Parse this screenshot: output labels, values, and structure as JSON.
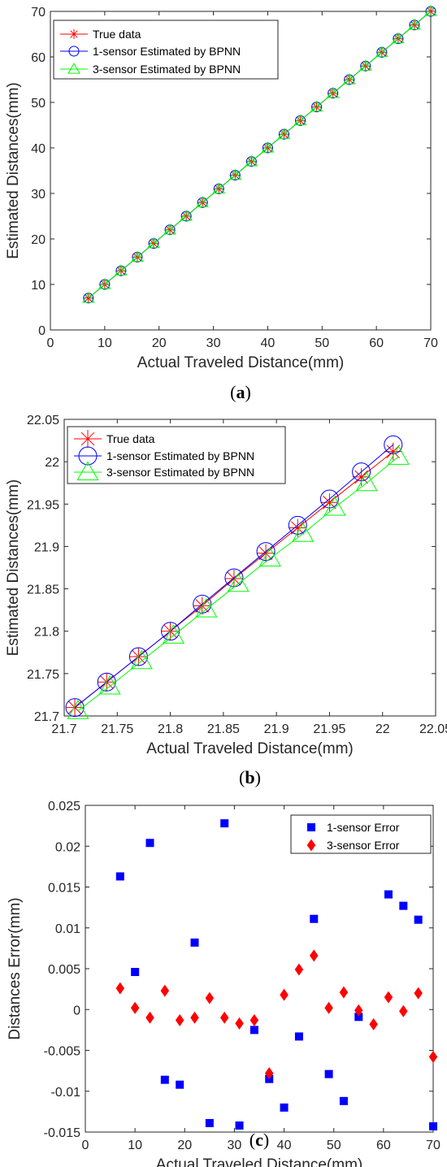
{
  "chart_data": [
    {
      "id": "a",
      "type": "line",
      "caption_letter": "a",
      "xlabel": "Actual Traveled Distance(mm)",
      "ylabel": "Estimated Distances(mm)",
      "xlim": [
        0,
        70
      ],
      "ylim": [
        0,
        70
      ],
      "xticks": [
        "0",
        "10",
        "20",
        "30",
        "40",
        "50",
        "60",
        "70"
      ],
      "yticks": [
        "0",
        "10",
        "20",
        "30",
        "40",
        "50",
        "60",
        "70"
      ],
      "grid": false,
      "legend": "top-left",
      "x": [
        7,
        10,
        13,
        16,
        19,
        22,
        25,
        28,
        31,
        34,
        37,
        40,
        43,
        46,
        49,
        52,
        55,
        58,
        61,
        64,
        67,
        70
      ],
      "series": [
        {
          "name": "True data",
          "color": "#ff0000",
          "marker": "asterisk",
          "y": [
            7,
            10,
            13,
            16,
            19,
            22,
            25,
            28,
            31,
            34,
            37,
            40,
            43,
            46,
            49,
            52,
            55,
            58,
            61,
            64,
            67,
            70
          ]
        },
        {
          "name": "1-sensor Estimated by BPNN",
          "color": "#0000ff",
          "marker": "circle",
          "y": [
            7,
            10,
            13,
            16,
            19,
            22,
            25,
            28,
            31,
            34,
            37,
            40,
            43,
            46,
            49,
            52,
            55,
            58,
            61,
            64,
            67,
            70
          ]
        },
        {
          "name": "3-sensor Estimated by BPNN",
          "color": "#00ff00",
          "marker": "triangle",
          "y": [
            7,
            10,
            13,
            16,
            19,
            22,
            25,
            28,
            31,
            34,
            37,
            40,
            43,
            46,
            49,
            52,
            55,
            58,
            61,
            64,
            67,
            70
          ]
        }
      ]
    },
    {
      "id": "b",
      "type": "line",
      "caption_letter": "b",
      "xlabel": "Actual Traveled Distance(mm)",
      "ylabel": "Estimated Distances(mm)",
      "xlim": [
        21.7,
        22.05
      ],
      "ylim": [
        21.7,
        22.05
      ],
      "xticks": [
        "21.7",
        "21.75",
        "21.8",
        "21.85",
        "21.9",
        "21.95",
        "22",
        "22.05"
      ],
      "yticks": [
        "21.7",
        "21.75",
        "21.8",
        "21.85",
        "21.9",
        "21.95",
        "22",
        "22.05"
      ],
      "grid": false,
      "legend": "top-left",
      "x": [
        21.71,
        21.74,
        21.77,
        21.8,
        21.83,
        21.86,
        21.89,
        21.92,
        21.95,
        21.98,
        22.01
      ],
      "series": [
        {
          "name": "True data",
          "color": "#ff0000",
          "marker": "asterisk",
          "x": [
            21.71,
            21.74,
            21.77,
            21.8,
            21.83,
            21.86,
            21.89,
            21.92,
            21.95,
            21.98,
            22.01
          ],
          "y": [
            21.71,
            21.74,
            21.77,
            21.8,
            21.83,
            21.862,
            21.892,
            21.922,
            21.952,
            21.982,
            22.012
          ]
        },
        {
          "name": "1-sensor Estimated by BPNN",
          "color": "#0000ff",
          "marker": "circle",
          "x": [
            21.71,
            21.74,
            21.77,
            21.8,
            21.83,
            21.86,
            21.89,
            21.92,
            21.95,
            21.98,
            22.01
          ],
          "y": [
            21.71,
            21.74,
            21.77,
            21.8,
            21.832,
            21.863,
            21.894,
            21.925,
            21.956,
            21.988,
            22.02
          ]
        },
        {
          "name": "3-sensor Estimated by BPNN",
          "color": "#00ff00",
          "marker": "triangle",
          "x": [
            21.713,
            21.743,
            21.773,
            21.803,
            21.834,
            21.864,
            21.894,
            21.925,
            21.955,
            21.985,
            22.015
          ],
          "y": [
            21.706,
            21.735,
            21.765,
            21.795,
            21.826,
            21.856,
            21.886,
            21.915,
            21.946,
            21.975,
            22.006
          ]
        }
      ]
    },
    {
      "id": "c",
      "type": "scatter",
      "caption_letter": "c",
      "xlabel": "Actual Traveled Distance(mm)",
      "ylabel": "Distances Error(mm)",
      "xlim": [
        0,
        70
      ],
      "ylim": [
        -0.015,
        0.025
      ],
      "xticks": [
        "0",
        "10",
        "20",
        "30",
        "40",
        "50",
        "60",
        "70"
      ],
      "yticks": [
        "-0.015",
        "-0.01",
        "-0.005",
        "0",
        "0.005",
        "0.01",
        "0.015",
        "0.02",
        "0.025"
      ],
      "grid": false,
      "legend": "top-right",
      "x": [
        7,
        10,
        13,
        16,
        19,
        22,
        25,
        28,
        31,
        34,
        37,
        40,
        43,
        46,
        49,
        52,
        55,
        58,
        61,
        64,
        67,
        70
      ],
      "series": [
        {
          "name": "1-sensor Error",
          "color": "#0000ff",
          "marker": "square",
          "x": [
            7,
            10,
            13,
            16,
            19,
            22,
            25,
            28,
            31,
            34,
            37,
            40,
            43,
            46,
            49,
            52,
            55,
            61,
            64,
            67,
            70
          ],
          "y": [
            0.0163,
            0.0046,
            0.0204,
            -0.0086,
            -0.0092,
            0.0082,
            -0.0139,
            0.0228,
            -0.0142,
            -0.0025,
            -0.0085,
            -0.012,
            -0.0033,
            0.0111,
            -0.0079,
            -0.0112,
            -0.0009,
            0.0141,
            0.0127,
            0.011,
            -0.0143
          ]
        },
        {
          "name": "3-sensor Error",
          "color": "#ff0000",
          "marker": "diamond",
          "x": [
            7,
            10,
            13,
            16,
            19,
            22,
            25,
            28,
            31,
            34,
            37,
            40,
            43,
            46,
            49,
            52,
            55,
            58,
            61,
            64,
            67,
            70
          ],
          "y": [
            0.0026,
            0.0002,
            -0.001,
            0.0023,
            -0.0013,
            -0.001,
            0.0014,
            -0.001,
            -0.0017,
            -0.0013,
            -0.0078,
            0.0018,
            0.0049,
            0.0066,
            0.0002,
            0.0021,
            -0.0001,
            -0.0018,
            0.0015,
            -0.0002,
            0.002,
            -0.0058
          ]
        }
      ]
    }
  ]
}
